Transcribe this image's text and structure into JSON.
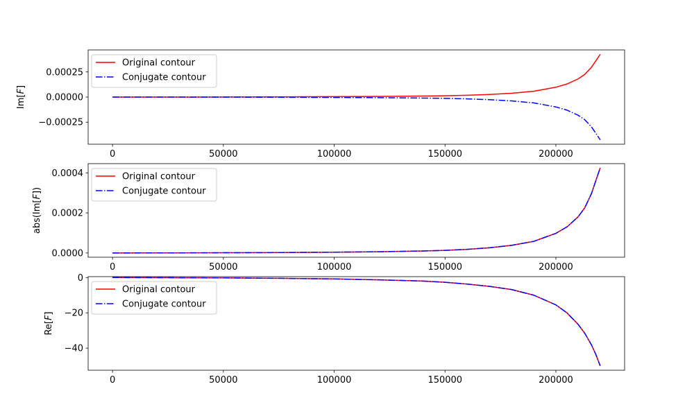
{
  "figure": {
    "background": "#ffffff"
  },
  "chart_data": [
    {
      "type": "line",
      "ylabel_prefix": "Im[",
      "ylabel_var": "F",
      "ylabel_suffix": "]",
      "xlim": [
        -11000,
        231000
      ],
      "ylim": [
        -0.000469,
        0.000469
      ],
      "x_ticks": [
        0,
        50000,
        100000,
        150000,
        200000
      ],
      "x_tick_labels": [
        "0",
        "50000",
        "100000",
        "150000",
        "200000"
      ],
      "y_ticks": [
        -0.00025,
        0,
        0.00025
      ],
      "y_tick_labels": [
        "−0.00025",
        "0.00000",
        "0.00025"
      ],
      "grid": false,
      "legend_position": "upper left",
      "series": [
        {
          "name": "Original contour",
          "color": "#ff0000",
          "style": "solid",
          "x": [
            0,
            25000,
            50000,
            75000,
            100000,
            120000,
            140000,
            150000,
            160000,
            170000,
            180000,
            190000,
            200000,
            205000,
            210000,
            213000,
            216000,
            218000,
            220000
          ],
          "y": [
            0,
            3e-07,
            1e-06,
            2e-06,
            4e-06,
            6e-06,
            1e-05,
            1.3e-05,
            1.8e-05,
            2.6e-05,
            3.8e-05,
            5.8e-05,
            9.8e-05,
            0.00013,
            0.00018,
            0.000225,
            0.000295,
            0.00036,
            0.000425
          ]
        },
        {
          "name": "Conjugate contour",
          "color": "#0000ff",
          "style": "dashdot",
          "x": [
            0,
            25000,
            50000,
            75000,
            100000,
            120000,
            140000,
            150000,
            160000,
            170000,
            180000,
            190000,
            200000,
            205000,
            210000,
            213000,
            216000,
            218000,
            220000
          ],
          "y": [
            0,
            -3e-07,
            -1e-06,
            -2e-06,
            -4e-06,
            -6e-06,
            -1e-05,
            -1.3e-05,
            -1.8e-05,
            -2.6e-05,
            -3.8e-05,
            -5.8e-05,
            -9.8e-05,
            -0.00013,
            -0.00018,
            -0.000225,
            -0.000295,
            -0.00036,
            -0.000425
          ]
        }
      ]
    },
    {
      "type": "line",
      "ylabel_prefix": "abs(Im[",
      "ylabel_var": "F",
      "ylabel_suffix": "])",
      "xlim": [
        -11000,
        231000
      ],
      "ylim": [
        -2.13e-05,
        0.000446
      ],
      "x_ticks": [
        0,
        50000,
        100000,
        150000,
        200000
      ],
      "x_tick_labels": [
        "0",
        "50000",
        "100000",
        "150000",
        "200000"
      ],
      "y_ticks": [
        0,
        0.0002,
        0.0004
      ],
      "y_tick_labels": [
        "0.0000",
        "0.0002",
        "0.0004"
      ],
      "grid": false,
      "legend_position": "upper left",
      "series": [
        {
          "name": "Original contour",
          "color": "#ff0000",
          "style": "solid",
          "x": [
            0,
            25000,
            50000,
            75000,
            100000,
            120000,
            140000,
            150000,
            160000,
            170000,
            180000,
            190000,
            200000,
            205000,
            210000,
            213000,
            216000,
            218000,
            220000
          ],
          "y": [
            0,
            3e-07,
            1e-06,
            2e-06,
            4e-06,
            6e-06,
            1e-05,
            1.3e-05,
            1.8e-05,
            2.6e-05,
            3.8e-05,
            5.8e-05,
            9.8e-05,
            0.00013,
            0.00018,
            0.000225,
            0.000295,
            0.00036,
            0.000425
          ]
        },
        {
          "name": "Conjugate contour",
          "color": "#0000ff",
          "style": "dashdot",
          "x": [
            0,
            25000,
            50000,
            75000,
            100000,
            120000,
            140000,
            150000,
            160000,
            170000,
            180000,
            190000,
            200000,
            205000,
            210000,
            213000,
            216000,
            218000,
            220000
          ],
          "y": [
            0,
            3e-07,
            1e-06,
            2e-06,
            4e-06,
            6e-06,
            1e-05,
            1.3e-05,
            1.8e-05,
            2.6e-05,
            3.8e-05,
            5.8e-05,
            9.8e-05,
            0.00013,
            0.00018,
            0.000225,
            0.000295,
            0.00036,
            0.000425
          ]
        }
      ]
    },
    {
      "type": "line",
      "ylabel_prefix": "Re[",
      "ylabel_var": "F",
      "ylabel_suffix": "]",
      "xlim": [
        -11000,
        231000
      ],
      "ylim": [
        -52.5,
        0.5
      ],
      "x_ticks": [
        0,
        50000,
        100000,
        150000,
        200000
      ],
      "x_tick_labels": [
        "0",
        "50000",
        "100000",
        "150000",
        "200000"
      ],
      "y_ticks": [
        -40,
        -20,
        0
      ],
      "y_tick_labels": [
        "−40",
        "−20",
        "0"
      ],
      "grid": false,
      "legend_position": "upper left",
      "series": [
        {
          "name": "Original contour",
          "color": "#ff0000",
          "style": "solid",
          "x": [
            0,
            25000,
            50000,
            75000,
            100000,
            120000,
            140000,
            150000,
            160000,
            170000,
            180000,
            190000,
            200000,
            205000,
            210000,
            213000,
            216000,
            218000,
            220000
          ],
          "y": [
            0,
            -0.1,
            -0.2,
            -0.45,
            -0.8,
            -1.3,
            -2.0,
            -2.7,
            -3.7,
            -5.0,
            -6.8,
            -10.0,
            -15.5,
            -20.0,
            -26.5,
            -31.5,
            -38.0,
            -43.5,
            -50.0
          ]
        },
        {
          "name": "Conjugate contour",
          "color": "#0000ff",
          "style": "dashdot",
          "x": [
            0,
            25000,
            50000,
            75000,
            100000,
            120000,
            140000,
            150000,
            160000,
            170000,
            180000,
            190000,
            200000,
            205000,
            210000,
            213000,
            216000,
            218000,
            220000
          ],
          "y": [
            0,
            -0.1,
            -0.2,
            -0.45,
            -0.8,
            -1.3,
            -2.0,
            -2.7,
            -3.7,
            -5.0,
            -6.8,
            -10.0,
            -15.5,
            -20.0,
            -26.5,
            -31.5,
            -38.0,
            -43.5,
            -50.0
          ]
        }
      ]
    }
  ]
}
